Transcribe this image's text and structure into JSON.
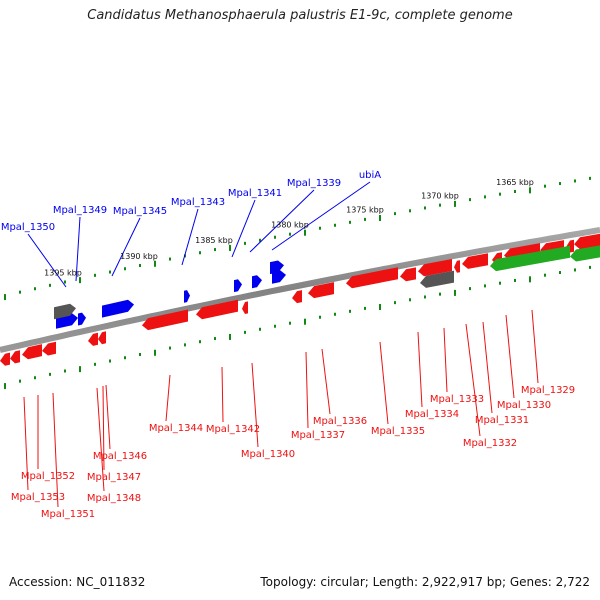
{
  "title": "Candidatus Methanosphaerula palustris E1-9c, complete genome",
  "footer": {
    "accession": "Accession: NC_011832",
    "topology": "Topology: circular; Length: 2,922,917 bp; Genes: 2,722"
  },
  "colors": {
    "forward_gene": "#0000ee",
    "reverse_gene": "#ee1111",
    "rna": "#555555",
    "green_feature": "#22aa22",
    "backbone": "#888888",
    "ticks": "#118811"
  },
  "ruler": [
    "1365 kbp",
    "1370 kbp",
    "1375 kbp",
    "1380 kbp",
    "1385 kbp",
    "1390 kbp",
    "1395 kbp"
  ],
  "top_labels": [
    "ubiA",
    "Mpal_1339",
    "Mpal_1341",
    "Mpal_1343",
    "Mpal_1345",
    "Mpal_1349",
    "Mpal_1350"
  ],
  "bottom_labels": [
    "Mpal_1329",
    "Mpal_1330",
    "Mpal_1331",
    "Mpal_1332",
    "Mpal_1333",
    "Mpal_1334",
    "Mpal_1335",
    "Mpal_1336",
    "Mpal_1337",
    "Mpal_1340",
    "Mpal_1342",
    "Mpal_1344",
    "Mpal_1346",
    "Mpal_1347",
    "Mpal_1348",
    "Mpal_1351",
    "Mpal_1352",
    "Mpal_1353"
  ]
}
